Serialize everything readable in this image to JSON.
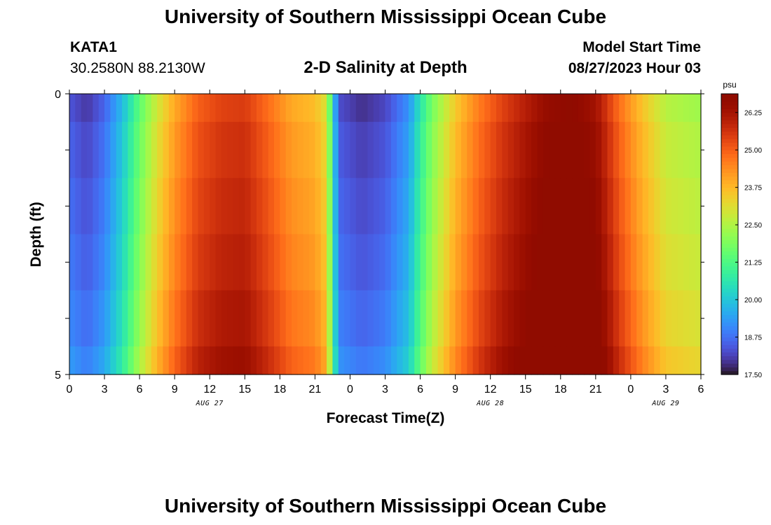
{
  "header": {
    "title": "University of Southern Mississippi Ocean Cube",
    "station": "KATA1",
    "coords": "30.2580N  88.2130W",
    "subtitle": "2-D Salinity at Depth",
    "model_start_label": "Model Start Time",
    "model_start_value": "08/27/2023 Hour 03"
  },
  "footer": {
    "title": "University of Southern Mississippi Ocean Cube"
  },
  "chart_data": {
    "type": "heatmap",
    "xlabel": "Forecast Time(Z)",
    "ylabel": "Depth (ft)",
    "x_tick_labels": [
      "0",
      "3",
      "6",
      "9",
      "12",
      "15",
      "18",
      "21",
      "0",
      "3",
      "6",
      "9",
      "12",
      "15",
      "18",
      "21",
      "0",
      "3",
      "6"
    ],
    "x_tick_hours": [
      0,
      3,
      6,
      9,
      12,
      15,
      18,
      21,
      24,
      27,
      30,
      33,
      36,
      39,
      42,
      45,
      48,
      51,
      54
    ],
    "date_labels": [
      {
        "text": "AUG 27",
        "hour": 12
      },
      {
        "text": "AUG 28",
        "hour": 36
      },
      {
        "text": "AUG 29",
        "hour": 51
      }
    ],
    "xlim_hours": [
      0,
      54
    ],
    "y_tick_labels": [
      "0",
      "5"
    ],
    "ylim": [
      0,
      5
    ],
    "colorbar": {
      "unit": "psu",
      "min": 17.5,
      "max": 26.875,
      "tick_labels": [
        "17.50",
        "18.75",
        "20.00",
        "21.25",
        "22.50",
        "23.75",
        "25.00",
        "26.25"
      ],
      "tick_values": [
        17.5,
        18.75,
        20.0,
        21.25,
        22.5,
        23.75,
        25.0,
        26.25
      ],
      "colormap": "turbo"
    },
    "time_profile_keys": [
      {
        "hour": 0,
        "value": 18.4
      },
      {
        "hour": 1.5,
        "value": 18.0
      },
      {
        "hour": 3,
        "value": 18.6
      },
      {
        "hour": 4.5,
        "value": 19.8
      },
      {
        "hour": 6,
        "value": 21.5
      },
      {
        "hour": 7.5,
        "value": 22.9
      },
      {
        "hour": 9,
        "value": 24.0
      },
      {
        "hour": 11,
        "value": 25.0
      },
      {
        "hour": 13,
        "value": 25.4
      },
      {
        "hour": 15,
        "value": 25.5
      },
      {
        "hour": 17,
        "value": 24.8
      },
      {
        "hour": 19,
        "value": 24.0
      },
      {
        "hour": 21,
        "value": 23.7
      },
      {
        "hour": 22,
        "value": 23.0
      },
      {
        "hour": 22.5,
        "value": 20.5
      },
      {
        "hour": 23,
        "value": 18.3
      },
      {
        "hour": 25,
        "value": 17.9
      },
      {
        "hour": 27,
        "value": 18.2
      },
      {
        "hour": 29,
        "value": 19.2
      },
      {
        "hour": 30,
        "value": 20.6
      },
      {
        "hour": 31,
        "value": 21.8
      },
      {
        "hour": 33,
        "value": 23.5
      },
      {
        "hour": 35,
        "value": 24.6
      },
      {
        "hour": 37,
        "value": 25.4
      },
      {
        "hour": 39,
        "value": 26.0
      },
      {
        "hour": 41,
        "value": 26.6
      },
      {
        "hour": 43,
        "value": 26.8
      },
      {
        "hour": 45,
        "value": 26.3
      },
      {
        "hour": 47,
        "value": 24.8
      },
      {
        "hour": 49,
        "value": 23.6
      },
      {
        "hour": 51,
        "value": 22.6
      },
      {
        "hour": 54,
        "value": 22.3
      }
    ],
    "depth_offsets": [
      {
        "depth": 0.0,
        "offset": 0.0
      },
      {
        "depth": 0.5,
        "offset": 0.2
      },
      {
        "depth": 1.5,
        "offset": 0.35
      },
      {
        "depth": 2.5,
        "offset": 0.5
      },
      {
        "depth": 3.5,
        "offset": 0.7
      },
      {
        "depth": 4.5,
        "offset": 0.95
      }
    ]
  }
}
